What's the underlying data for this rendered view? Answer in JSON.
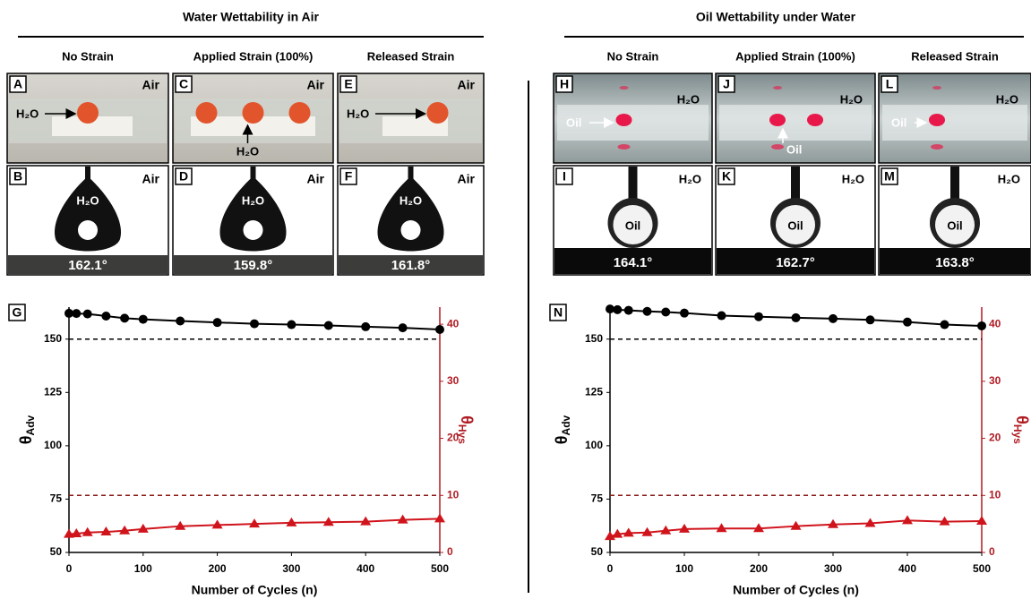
{
  "sections": [
    {
      "title": "Water Wettability in Air",
      "columns": [
        "No Strain",
        "Applied Strain (100%)",
        "Released Strain"
      ],
      "top": [
        {
          "letter": "A",
          "medium": "Air",
          "callout": "H₂O"
        },
        {
          "letter": "C",
          "medium": "Air",
          "callout": "H₂O"
        },
        {
          "letter": "E",
          "medium": "Air",
          "callout": "H₂O"
        }
      ],
      "bottom": [
        {
          "letter": "B",
          "medium": "Air",
          "drop": "H₂O",
          "angle": "162.1°"
        },
        {
          "letter": "D",
          "medium": "Air",
          "drop": "H₂O",
          "angle": "159.8°"
        },
        {
          "letter": "F",
          "medium": "Air",
          "drop": "H₂O",
          "angle": "161.8°"
        }
      ]
    },
    {
      "title": "Oil Wettability under Water",
      "columns": [
        "No Strain",
        "Applied Strain (100%)",
        "Released Strain"
      ],
      "top": [
        {
          "letter": "H",
          "medium": "H₂O",
          "callout": "Oil"
        },
        {
          "letter": "J",
          "medium": "H₂O",
          "callout": "Oil"
        },
        {
          "letter": "L",
          "medium": "H₂O",
          "callout": "Oil"
        }
      ],
      "bottom": [
        {
          "letter": "I",
          "medium": "H₂O",
          "drop": "Oil",
          "angle": "164.1°"
        },
        {
          "letter": "K",
          "medium": "H₂O",
          "drop": "Oil",
          "angle": "162.7°"
        },
        {
          "letter": "M",
          "medium": "H₂O",
          "drop": "Oil",
          "angle": "163.8°"
        }
      ]
    }
  ],
  "chart_data": [
    {
      "type": "line",
      "label": "G",
      "xlabel": "Number of Cycles (n)",
      "ylabel": "θ",
      "ylabel_sub": "Adv",
      "y2label": "θ",
      "y2label_sub": "Hys",
      "x": [
        0,
        10,
        25,
        50,
        75,
        100,
        150,
        200,
        250,
        300,
        350,
        400,
        450,
        500
      ],
      "xlim": [
        0,
        500
      ],
      "xticks": [
        0,
        100,
        200,
        300,
        400,
        500
      ],
      "ylim": [
        50,
        165
      ],
      "yticks": [
        50,
        75,
        100,
        125,
        150
      ],
      "y2lim": [
        0,
        43
      ],
      "y2ticks": [
        0,
        10,
        20,
        30,
        40
      ],
      "y2color": "#b01c24",
      "reference_lines": [
        {
          "value": 150,
          "axis": "y",
          "color": "#000000"
        },
        {
          "value": 10,
          "axis": "y2",
          "color": "#8b1a1a"
        }
      ],
      "series": [
        {
          "color": "#000000",
          "marker": "circle",
          "values": [
            162.1,
            162,
            161.8,
            160.8,
            159.8,
            159.3,
            158.5,
            157.8,
            157.2,
            156.8,
            156.4,
            155.8,
            155.3,
            154.5
          ]
        },
        {
          "color": "#d0141c",
          "marker": "triangle",
          "axis": "y2",
          "values": [
            3.2,
            3.3,
            3.5,
            3.6,
            3.8,
            4.1,
            4.6,
            4.8,
            5.0,
            5.2,
            5.3,
            5.4,
            5.7,
            5.9
          ]
        }
      ]
    },
    {
      "type": "line",
      "label": "N",
      "xlabel": "Number  of  Cycles (n)",
      "ylabel": "θ",
      "ylabel_sub": "Adv",
      "y2label": "θ",
      "y2label_sub": "Hys",
      "x": [
        0,
        10,
        25,
        50,
        75,
        100,
        150,
        200,
        250,
        300,
        350,
        400,
        450,
        500
      ],
      "xlim": [
        0,
        500
      ],
      "xticks": [
        0,
        100,
        200,
        300,
        400,
        500
      ],
      "ylim": [
        50,
        165
      ],
      "yticks": [
        50,
        75,
        100,
        125,
        150
      ],
      "y2lim": [
        0,
        43
      ],
      "y2ticks": [
        0,
        10,
        20,
        30,
        40
      ],
      "y2color": "#b01c24",
      "reference_lines": [
        {
          "value": 150,
          "axis": "y",
          "color": "#000000"
        },
        {
          "value": 10,
          "axis": "y2",
          "color": "#8b1a1a"
        }
      ],
      "series": [
        {
          "color": "#000000",
          "marker": "circle",
          "values": [
            164.1,
            163.8,
            163.5,
            163.0,
            162.7,
            162.2,
            161.0,
            160.5,
            160.0,
            159.6,
            159.0,
            158.0,
            156.8,
            156.2
          ]
        },
        {
          "color": "#d0141c",
          "marker": "triangle",
          "axis": "y2",
          "values": [
            2.8,
            3.2,
            3.4,
            3.5,
            3.8,
            4.1,
            4.2,
            4.2,
            4.6,
            4.9,
            5.1,
            5.6,
            5.4,
            5.5
          ]
        }
      ]
    }
  ]
}
